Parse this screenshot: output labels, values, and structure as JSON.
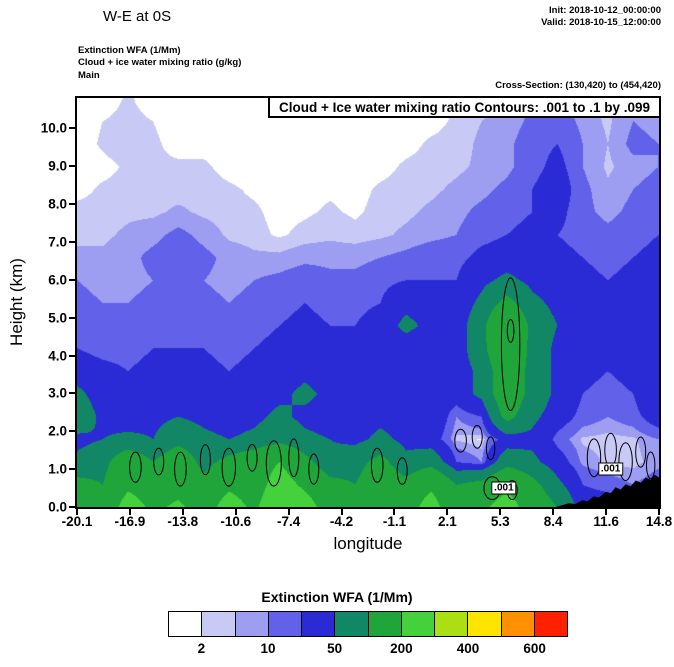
{
  "header": {
    "title": "W-E at 0S",
    "init_valid": "Init: 2018-10-12_00:00:00\nValid: 2018-10-15_12:00:00",
    "field_lines": "Extinction WFA  (1/Mm)\nCloud + ice water mixing ratio   (g/kg)\nMain",
    "cross_section": "Cross-Section: (130,420) to (454,420)"
  },
  "plot": {
    "inner_title": "Cloud + Ice water mixing ratio Contours: .001 to .1 by .099",
    "x_label": "longitude",
    "y_label": "Height (km)",
    "x_ticks": [
      "-20.1",
      "-16.9",
      "-13.8",
      "-10.6",
      "-7.4",
      "-4.2",
      "-1.1",
      "2.1",
      "5.3",
      "8.4",
      "11.6",
      "14.8"
    ],
    "y_ticks": [
      "0.0",
      "1.0",
      "2.0",
      "3.0",
      "4.0",
      "5.0",
      "6.0",
      "7.0",
      "8.0",
      "9.0",
      "10.0"
    ],
    "contour_labels": [
      {
        "text": ".001",
        "lon": 5.5,
        "km": 0.5
      },
      {
        "text": ".001",
        "lon": 11.9,
        "km": 1.0
      }
    ]
  },
  "colorbar": {
    "title": "Extinction WFA  (1/Mm)",
    "colors": [
      "#ffffff",
      "#c9c9f6",
      "#9d9df1",
      "#6161e9",
      "#2b2bd5",
      "#128766",
      "#1fa53a",
      "#44d13c",
      "#abdf14",
      "#ffe400",
      "#ff9000",
      "#ff2000"
    ],
    "labels": [
      "2",
      "10",
      "50",
      "200",
      "400",
      "600"
    ],
    "label_boundaries": [
      1,
      3,
      5,
      7,
      9,
      11
    ]
  },
  "chart_data": {
    "type": "heatmap",
    "title": "Cloud + Ice water mixing ratio Contours: .001 to .1 by .099",
    "xlabel": "longitude",
    "ylabel": "Height (km)",
    "units": "1/Mm",
    "x_range": [
      -20.1,
      14.8
    ],
    "y_range": [
      0,
      10.8
    ],
    "levels": [
      2,
      5,
      10,
      20,
      50,
      100,
      200,
      300,
      400,
      500,
      600
    ],
    "x": [
      -20.1,
      -18.58,
      -17.07,
      -15.55,
      -14.03,
      -12.52,
      -11.0,
      -9.48,
      -7.97,
      -6.45,
      -4.93,
      -3.42,
      -1.9,
      -0.38,
      1.13,
      2.65,
      4.17,
      5.68,
      7.2,
      8.72,
      10.23,
      11.75,
      13.27,
      14.8
    ],
    "heights": [
      0,
      0.6,
      1.2,
      1.8,
      2.4,
      3.0,
      3.6,
      4.2,
      4.8,
      5.4,
      6.0,
      6.6,
      7.2,
      7.8,
      8.4,
      9.0,
      9.6,
      10.2,
      10.8
    ],
    "values": [
      [
        150,
        120,
        250,
        180,
        220,
        150,
        250,
        180,
        300,
        250,
        150,
        120,
        200,
        150,
        250,
        120,
        180,
        250,
        150,
        100,
        30,
        30,
        30,
        30
      ],
      [
        120,
        100,
        180,
        150,
        160,
        120,
        180,
        150,
        250,
        180,
        120,
        100,
        150,
        120,
        180,
        100,
        120,
        180,
        120,
        60,
        20,
        15,
        10,
        15
      ],
      [
        60,
        80,
        150,
        100,
        150,
        80,
        120,
        150,
        200,
        120,
        60,
        80,
        120,
        60,
        80,
        20,
        10,
        80,
        60,
        30,
        8,
        4,
        3,
        8
      ],
      [
        40,
        50,
        60,
        50,
        80,
        60,
        50,
        60,
        80,
        60,
        50,
        40,
        60,
        40,
        30,
        4,
        1.5,
        30,
        40,
        15,
        4,
        3,
        4,
        10
      ],
      [
        80,
        40,
        30,
        40,
        50,
        40,
        30,
        40,
        60,
        40,
        30,
        30,
        40,
        30,
        40,
        10,
        20,
        120,
        60,
        30,
        15,
        10,
        15,
        30
      ],
      [
        60,
        30,
        25,
        30,
        30,
        30,
        25,
        30,
        40,
        60,
        40,
        30,
        30,
        25,
        30,
        30,
        60,
        150,
        80,
        40,
        20,
        15,
        20,
        40
      ],
      [
        30,
        25,
        20,
        25,
        25,
        25,
        20,
        25,
        30,
        40,
        30,
        25,
        25,
        20,
        25,
        30,
        60,
        150,
        80,
        40,
        25,
        20,
        25,
        40
      ],
      [
        20,
        15,
        15,
        20,
        20,
        20,
        15,
        20,
        25,
        30,
        25,
        20,
        25,
        30,
        25,
        30,
        80,
        180,
        80,
        40,
        25,
        20,
        25,
        40
      ],
      [
        15,
        12,
        12,
        15,
        15,
        15,
        12,
        15,
        20,
        25,
        20,
        20,
        30,
        60,
        40,
        30,
        80,
        200,
        80,
        50,
        30,
        25,
        30,
        50
      ],
      [
        12,
        10,
        10,
        12,
        12,
        12,
        10,
        12,
        15,
        20,
        15,
        15,
        20,
        40,
        30,
        25,
        60,
        120,
        60,
        40,
        30,
        25,
        30,
        40
      ],
      [
        10,
        8,
        8,
        10,
        10,
        10,
        8,
        10,
        12,
        15,
        12,
        12,
        15,
        20,
        20,
        20,
        40,
        60,
        40,
        30,
        25,
        20,
        25,
        30
      ],
      [
        6,
        6,
        8,
        12,
        15,
        12,
        8,
        6,
        6,
        8,
        8,
        8,
        10,
        12,
        15,
        15,
        25,
        30,
        30,
        25,
        20,
        15,
        20,
        25
      ],
      [
        4,
        4,
        6,
        8,
        12,
        8,
        4,
        3,
        1.5,
        3,
        4,
        3,
        4,
        6,
        8,
        10,
        15,
        20,
        25,
        20,
        15,
        12,
        15,
        20
      ],
      [
        3,
        3,
        4,
        4,
        6,
        4,
        3,
        2.5,
        1,
        1.5,
        2.5,
        1.5,
        3,
        4,
        6,
        8,
        12,
        15,
        20,
        25,
        12,
        8,
        12,
        15
      ],
      [
        1,
        2.5,
        3,
        3,
        3,
        3,
        2.5,
        1.5,
        1,
        1,
        1.5,
        1,
        2.5,
        3,
        4,
        6,
        8,
        12,
        20,
        30,
        12,
        6,
        10,
        12
      ],
      [
        0.5,
        1,
        2.5,
        2.5,
        2.5,
        2.5,
        1,
        0.5,
        0.5,
        0.5,
        1,
        0.5,
        1,
        2.5,
        3,
        4,
        6,
        8,
        15,
        25,
        10,
        4,
        8,
        10
      ],
      [
        0.3,
        2.5,
        4,
        2.5,
        1,
        1,
        0.5,
        0.3,
        0.3,
        0.3,
        0.5,
        0.3,
        0.5,
        1,
        2.5,
        3,
        6,
        8,
        15,
        20,
        10,
        5,
        12,
        10
      ],
      [
        0.2,
        2,
        3,
        2,
        0.5,
        0.5,
        0.3,
        0.2,
        0.2,
        0.2,
        0.3,
        0.2,
        0.3,
        0.5,
        1,
        2.5,
        5,
        6,
        12,
        15,
        8,
        4,
        10,
        8
      ],
      [
        0.1,
        0.2,
        2.5,
        0.3,
        0.3,
        0.3,
        0.2,
        0.1,
        0.1,
        0.1,
        0.2,
        0.1,
        0.2,
        0.3,
        0.5,
        2,
        4,
        5,
        10,
        12,
        6,
        4,
        8,
        6
      ]
    ],
    "terrain": [
      [
        8.6,
        0
      ],
      [
        9.0,
        0.05
      ],
      [
        9.4,
        0.1
      ],
      [
        9.8,
        0.08
      ],
      [
        10.2,
        0.18
      ],
      [
        10.5,
        0.15
      ],
      [
        10.9,
        0.28
      ],
      [
        11.2,
        0.25
      ],
      [
        11.6,
        0.4
      ],
      [
        11.9,
        0.36
      ],
      [
        12.2,
        0.52
      ],
      [
        12.5,
        0.46
      ],
      [
        12.8,
        0.6
      ],
      [
        13.1,
        0.55
      ],
      [
        13.4,
        0.7
      ],
      [
        13.7,
        0.64
      ],
      [
        14.0,
        0.78
      ],
      [
        14.3,
        0.72
      ],
      [
        14.55,
        0.85
      ],
      [
        14.8,
        0.78
      ],
      [
        14.8,
        0
      ]
    ],
    "cloud_contours": [
      {
        "cx": 5.9,
        "cy": 4.3,
        "rx": 0.55,
        "ry": 1.75
      },
      {
        "cx": 5.9,
        "cy": 4.65,
        "rx": 0.2,
        "ry": 0.3
      },
      {
        "cx": -16.6,
        "cy": 1.05,
        "rx": 0.35,
        "ry": 0.4
      },
      {
        "cx": -15.2,
        "cy": 1.2,
        "rx": 0.3,
        "ry": 0.35
      },
      {
        "cx": -13.9,
        "cy": 1.0,
        "rx": 0.35,
        "ry": 0.45
      },
      {
        "cx": -12.4,
        "cy": 1.25,
        "rx": 0.3,
        "ry": 0.4
      },
      {
        "cx": -11.0,
        "cy": 1.05,
        "rx": 0.4,
        "ry": 0.5
      },
      {
        "cx": -9.6,
        "cy": 1.3,
        "rx": 0.3,
        "ry": 0.35
      },
      {
        "cx": -8.3,
        "cy": 1.15,
        "rx": 0.45,
        "ry": 0.6
      },
      {
        "cx": -7.1,
        "cy": 1.3,
        "rx": 0.3,
        "ry": 0.5
      },
      {
        "cx": -5.9,
        "cy": 1.0,
        "rx": 0.3,
        "ry": 0.4
      },
      {
        "cx": -2.1,
        "cy": 1.1,
        "rx": 0.35,
        "ry": 0.45
      },
      {
        "cx": -0.6,
        "cy": 0.95,
        "rx": 0.3,
        "ry": 0.35
      },
      {
        "cx": 2.9,
        "cy": 1.75,
        "rx": 0.35,
        "ry": 0.3
      },
      {
        "cx": 3.9,
        "cy": 1.85,
        "rx": 0.3,
        "ry": 0.3
      },
      {
        "cx": 4.7,
        "cy": 1.55,
        "rx": 0.25,
        "ry": 0.3
      },
      {
        "cx": 4.8,
        "cy": 0.5,
        "rx": 0.5,
        "ry": 0.3
      },
      {
        "cx": 6.0,
        "cy": 0.45,
        "rx": 0.3,
        "ry": 0.25
      },
      {
        "cx": 10.9,
        "cy": 1.3,
        "rx": 0.4,
        "ry": 0.5
      },
      {
        "cx": 11.9,
        "cy": 1.5,
        "rx": 0.35,
        "ry": 0.45
      },
      {
        "cx": 12.8,
        "cy": 1.2,
        "rx": 0.4,
        "ry": 0.5
      },
      {
        "cx": 13.7,
        "cy": 1.45,
        "rx": 0.3,
        "ry": 0.4
      },
      {
        "cx": 14.3,
        "cy": 1.1,
        "rx": 0.25,
        "ry": 0.35
      }
    ]
  }
}
